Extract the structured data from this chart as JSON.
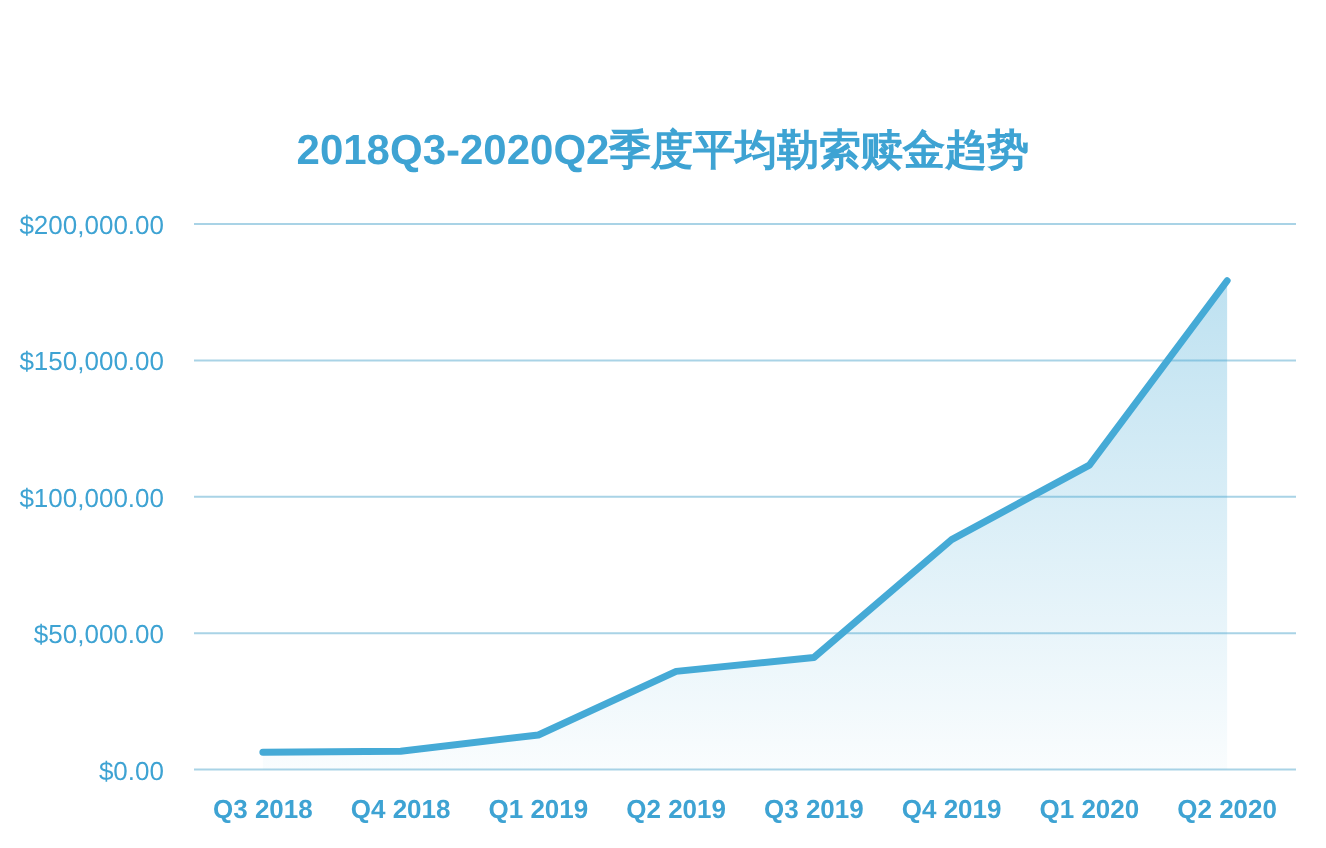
{
  "chart_data": {
    "type": "area",
    "title": "2018Q3-2020Q2季度平均勒索赎金趋势",
    "categories": [
      "Q3 2018",
      "Q4 2018",
      "Q1 2019",
      "Q2 2019",
      "Q3 2019",
      "Q4 2019",
      "Q1 2020",
      "Q2 2020"
    ],
    "series": [
      {
        "color": "#45aad6",
        "values": [
          6400,
          6700,
          12700,
          36000,
          41100,
          84300,
          111600,
          179200
        ]
      }
    ],
    "ylim": [
      0,
      200000
    ],
    "yticks": [
      {
        "value": 0,
        "label": "$0.00"
      },
      {
        "value": 50000,
        "label": "$50,000.00"
      },
      {
        "value": 100000,
        "label": "$100,000.00"
      },
      {
        "value": 150000,
        "label": "$150,000.00"
      },
      {
        "value": 200000,
        "label": "$200,000.00"
      }
    ],
    "grid": "y"
  }
}
